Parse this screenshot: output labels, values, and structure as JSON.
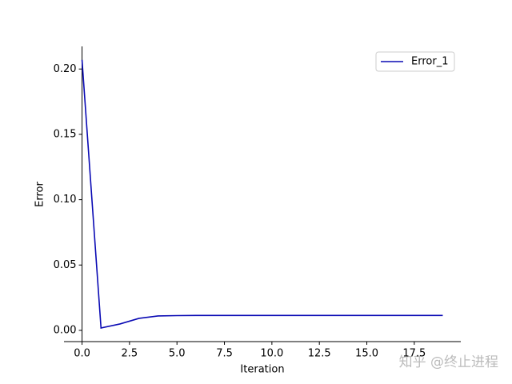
{
  "chart_data": {
    "type": "line",
    "xlabel": "Iteration",
    "ylabel": "Error",
    "x": [
      0,
      1,
      2,
      3,
      4,
      5,
      6,
      7,
      8,
      9,
      10,
      11,
      12,
      13,
      14,
      15,
      16,
      17,
      18,
      19
    ],
    "series": [
      {
        "name": "Error_1",
        "color": "#0a0ab4",
        "values": [
          0.207,
          0.0018,
          0.0049,
          0.0092,
          0.011,
          0.0113,
          0.0114,
          0.0114,
          0.0114,
          0.0114,
          0.0114,
          0.0114,
          0.0114,
          0.0114,
          0.0114,
          0.0114,
          0.0114,
          0.0114,
          0.0114,
          0.0114
        ]
      }
    ],
    "xlim": [
      -0.95,
      19.95
    ],
    "ylim": [
      -0.0086,
      0.2173
    ],
    "xticks": [
      {
        "value": 0,
        "label": "0.0"
      },
      {
        "value": 2.5,
        "label": "2.5"
      },
      {
        "value": 5,
        "label": "5.0"
      },
      {
        "value": 7.5,
        "label": "7.5"
      },
      {
        "value": 10,
        "label": "10.0"
      },
      {
        "value": 12.5,
        "label": "12.5"
      },
      {
        "value": 15,
        "label": "15.0"
      },
      {
        "value": 17.5,
        "label": "17.5"
      }
    ],
    "yticks": [
      {
        "value": 0,
        "label": "0.00"
      },
      {
        "value": 0.05,
        "label": "0.05"
      },
      {
        "value": 0.1,
        "label": "0.10"
      },
      {
        "value": 0.15,
        "label": "0.15"
      },
      {
        "value": 0.2,
        "label": "0.20"
      }
    ],
    "legend": "upper right",
    "watermark": "知乎 @终止进程"
  }
}
